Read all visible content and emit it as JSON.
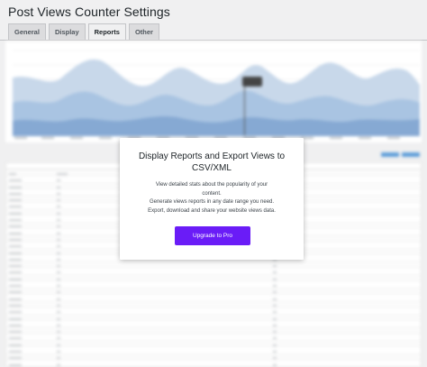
{
  "page": {
    "title": "Post Views Counter Settings"
  },
  "tabs": [
    {
      "label": "General",
      "active": false
    },
    {
      "label": "Display",
      "active": false
    },
    {
      "label": "Reports",
      "active": true
    },
    {
      "label": "Other",
      "active": false
    }
  ],
  "overlay": {
    "title": "Display Reports and Export Views to CSV/XML",
    "description_lines": [
      "View detailed stats about the popularity of your",
      "content.",
      "Generate views reports in any date range you need.",
      "Export, download and share your website views data."
    ],
    "button_label": "Upgrade to Pro",
    "button_color": "#6a1cf7"
  },
  "colors": {
    "chart_area_light": "#c8d8ea",
    "chart_area_mid": "#a9c4e2",
    "chart_area_dark": "#86a9d3",
    "action_button": "#5f9ed9"
  }
}
